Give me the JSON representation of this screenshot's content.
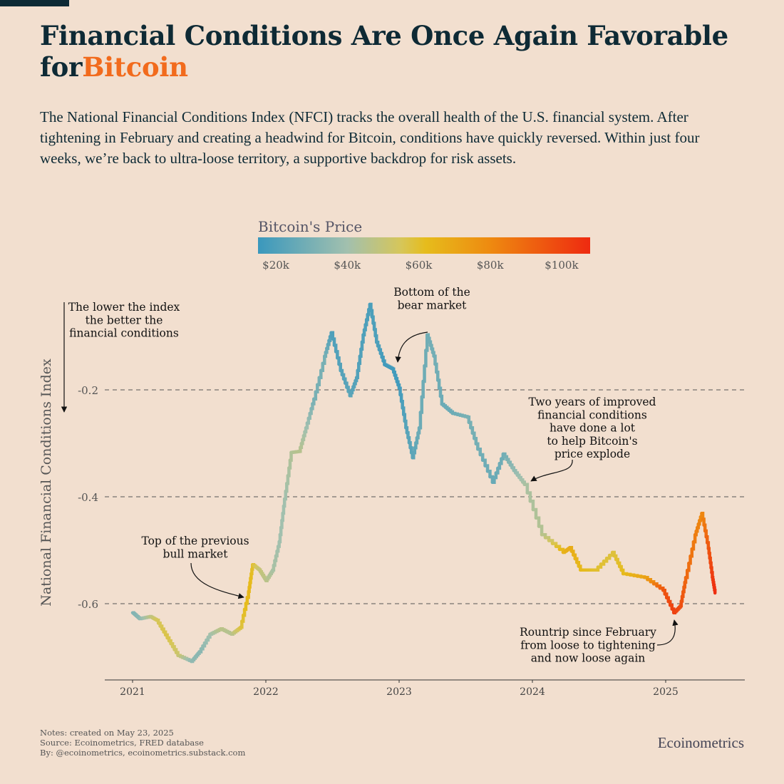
{
  "title": {
    "part1": "Financial Conditions Are Once Again Favorable for",
    "highlight": "Bitcoin"
  },
  "subtitle": "The National Financial Conditions Index (NFCI) tracks the overall health of the U.S. financial system. After tightening in February and creating a headwind for Bitcoin, conditions have quickly reversed. Within just four weeks, we’re back to ultra-loose territory, a supportive backdrop for risk assets.",
  "notes": [
    "Notes: created on May 23, 2025",
    "Source: Ecoinometrics, FRED database",
    "By: @ecoinometrics, ecoinometrics.substack.com"
  ],
  "brand": "Ecoinometrics",
  "chart_data": {
    "type": "line",
    "ylabel": "National Financial Conditions Index",
    "ylim": [
      -0.74,
      0.05
    ],
    "xlim": [
      2020.8,
      2025.55
    ],
    "yticks": [
      {
        "v": -0.2,
        "label": "-0.2"
      },
      {
        "v": -0.4,
        "label": "-0.4"
      },
      {
        "v": -0.6,
        "label": "-0.6"
      }
    ],
    "xticks": [
      {
        "v": 2021,
        "label": "2021"
      },
      {
        "v": 2022,
        "label": "2022"
      },
      {
        "v": 2023,
        "label": "2023"
      },
      {
        "v": 2024,
        "label": "2024"
      },
      {
        "v": 2025,
        "label": "2025"
      }
    ],
    "grid": "horizontal dashed",
    "colorbar": {
      "title": "Bitcoin's Price",
      "range": [
        15,
        108
      ],
      "ticks": [
        {
          "v": 20,
          "label": "$20k"
        },
        {
          "v": 40,
          "label": "$40k"
        },
        {
          "v": 60,
          "label": "$60k"
        },
        {
          "v": 80,
          "label": "$80k"
        },
        {
          "v": 100,
          "label": "$100k"
        }
      ],
      "stops": [
        {
          "v": 15,
          "c": "#3a98bd"
        },
        {
          "v": 40,
          "c": "#a2c0ae"
        },
        {
          "v": 55,
          "c": "#d6c65a"
        },
        {
          "v": 62,
          "c": "#e6bc1c"
        },
        {
          "v": 80,
          "c": "#ee8a10"
        },
        {
          "v": 108,
          "c": "#ee2a10"
        }
      ]
    },
    "points": [
      [
        2021.0,
        -0.617,
        32
      ],
      [
        2021.05,
        -0.628,
        34
      ],
      [
        2021.13,
        -0.624,
        47
      ],
      [
        2021.18,
        -0.631,
        55
      ],
      [
        2021.26,
        -0.664,
        57
      ],
      [
        2021.34,
        -0.697,
        52
      ],
      [
        2021.44,
        -0.708,
        36
      ],
      [
        2021.5,
        -0.69,
        34
      ],
      [
        2021.58,
        -0.657,
        40
      ],
      [
        2021.66,
        -0.647,
        47
      ],
      [
        2021.74,
        -0.657,
        45
      ],
      [
        2021.81,
        -0.644,
        58
      ],
      [
        2021.87,
        -0.577,
        64
      ],
      [
        2021.9,
        -0.527,
        60
      ],
      [
        2021.95,
        -0.537,
        50
      ],
      [
        2022.0,
        -0.557,
        47
      ],
      [
        2022.05,
        -0.537,
        42
      ],
      [
        2022.1,
        -0.484,
        40
      ],
      [
        2022.14,
        -0.404,
        40
      ],
      [
        2022.19,
        -0.317,
        44
      ],
      [
        2022.25,
        -0.315,
        46
      ],
      [
        2022.3,
        -0.271,
        40
      ],
      [
        2022.36,
        -0.217,
        30
      ],
      [
        2022.44,
        -0.137,
        30
      ],
      [
        2022.49,
        -0.093,
        20
      ],
      [
        2022.56,
        -0.164,
        21
      ],
      [
        2022.63,
        -0.211,
        23
      ],
      [
        2022.68,
        -0.177,
        21
      ],
      [
        2022.73,
        -0.097,
        20
      ],
      [
        2022.78,
        -0.04,
        19
      ],
      [
        2022.83,
        -0.111,
        20
      ],
      [
        2022.89,
        -0.153,
        17
      ],
      [
        2022.95,
        -0.161,
        17
      ],
      [
        2023.0,
        -0.197,
        17
      ],
      [
        2023.05,
        -0.271,
        22
      ],
      [
        2023.1,
        -0.327,
        23
      ],
      [
        2023.15,
        -0.271,
        27
      ],
      [
        2023.21,
        -0.097,
        28
      ],
      [
        2023.26,
        -0.137,
        29
      ],
      [
        2023.32,
        -0.227,
        27
      ],
      [
        2023.4,
        -0.244,
        27
      ],
      [
        2023.51,
        -0.251,
        30
      ],
      [
        2023.59,
        -0.311,
        29
      ],
      [
        2023.7,
        -0.373,
        26
      ],
      [
        2023.78,
        -0.32,
        28
      ],
      [
        2023.86,
        -0.351,
        36
      ],
      [
        2023.94,
        -0.377,
        42
      ],
      [
        2024.07,
        -0.471,
        45
      ],
      [
        2024.23,
        -0.504,
        65
      ],
      [
        2024.28,
        -0.495,
        68
      ],
      [
        2024.36,
        -0.537,
        63
      ],
      [
        2024.47,
        -0.537,
        60
      ],
      [
        2024.6,
        -0.504,
        58
      ],
      [
        2024.68,
        -0.544,
        62
      ],
      [
        2024.84,
        -0.551,
        70
      ],
      [
        2024.98,
        -0.575,
        95
      ],
      [
        2025.06,
        -0.617,
        102
      ],
      [
        2025.11,
        -0.604,
        98
      ],
      [
        2025.15,
        -0.551,
        90
      ],
      [
        2025.22,
        -0.471,
        84
      ],
      [
        2025.27,
        -0.431,
        80
      ],
      [
        2025.32,
        -0.497,
        95
      ],
      [
        2025.35,
        -0.551,
        103
      ],
      [
        2025.37,
        -0.58,
        107
      ]
    ],
    "annotations": [
      {
        "id": "lower",
        "text": [
          "The lower the index",
          "the better the",
          "financial conditions"
        ]
      },
      {
        "id": "bottom",
        "text": [
          "Bottom of the",
          "bear market"
        ]
      },
      {
        "id": "top",
        "text": [
          "Top of the previous",
          "bull market"
        ]
      },
      {
        "id": "improved",
        "text": [
          "Two years of improved",
          "financial conditions",
          "have done a lot",
          "to help Bitcoin's",
          "price explode"
        ]
      },
      {
        "id": "roundtrip",
        "text": [
          "Rountrip since February",
          "from loose to tightening",
          "and now loose again"
        ]
      }
    ]
  }
}
